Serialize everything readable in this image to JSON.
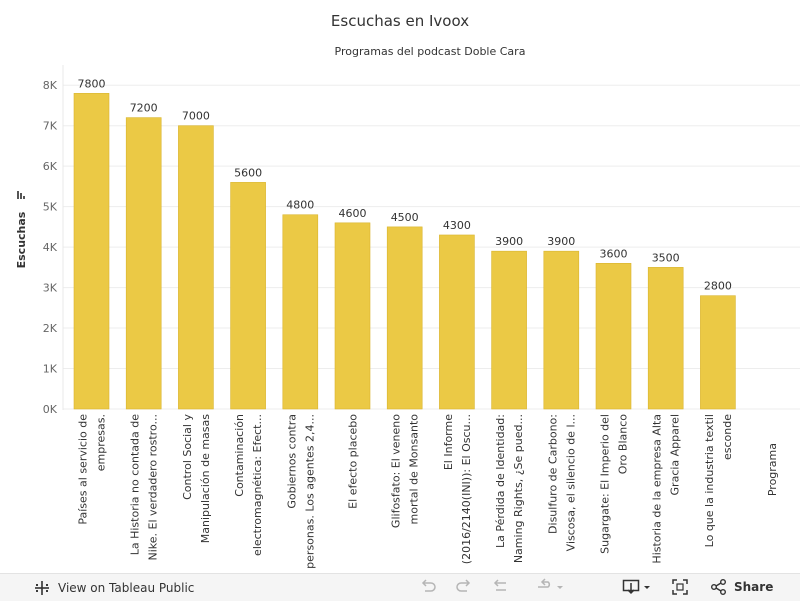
{
  "chart_data": {
    "type": "bar",
    "title": "Escuchas en Ivoox",
    "subtitle": "Programas del podcast Doble Cara",
    "xlabel": "Programa",
    "ylabel": "Escuchas",
    "ylim": [
      0,
      8500
    ],
    "yticks": [
      0,
      1000,
      2000,
      3000,
      4000,
      5000,
      6000,
      7000,
      8000
    ],
    "ytick_labels": [
      "0K",
      "1K",
      "2K",
      "3K",
      "4K",
      "5K",
      "6K",
      "7K",
      "8K"
    ],
    "bar_color": "#EBC945",
    "categories": [
      [
        "Países al servicio de",
        "empresas."
      ],
      [
        "La Historia no contada de",
        "Nike. El verdadero rostro..."
      ],
      [
        "Control Social y",
        "Manipulación de masas"
      ],
      [
        "Contaminación",
        "electromagnética: Efect..."
      ],
      [
        "Gobiernos contra",
        "personas. Los agentes 2,4..."
      ],
      [
        "El efecto placebo"
      ],
      [
        "Glifosfato: El veneno",
        "mortal de Monsanto"
      ],
      [
        "El Informe",
        "(2016/2140(INI)): El Oscu..."
      ],
      [
        "La Pérdida de Identidad:",
        "Naming Rights, ¿Se pued..."
      ],
      [
        "Disulfuro de Carbono:",
        "Viscosa, el silencio de l..."
      ],
      [
        "Sugargate: El Imperio del",
        "Oro Blanco"
      ],
      [
        "Historia de la empresa Alta",
        "Gracia Apparel"
      ],
      [
        "Lo que la industria textil",
        "esconde"
      ]
    ],
    "values": [
      7800,
      7200,
      7000,
      5600,
      4800,
      4600,
      4500,
      4300,
      3900,
      3900,
      3600,
      3500,
      2800
    ],
    "data_labels": [
      "7800",
      "7200",
      "7000",
      "5600",
      "4800",
      "4600",
      "4500",
      "4300",
      "3900",
      "3900",
      "3600",
      "3500",
      "2800"
    ],
    "grid": true
  },
  "toolbar": {
    "view_label": "View on Tableau Public",
    "share_label": "Share"
  }
}
